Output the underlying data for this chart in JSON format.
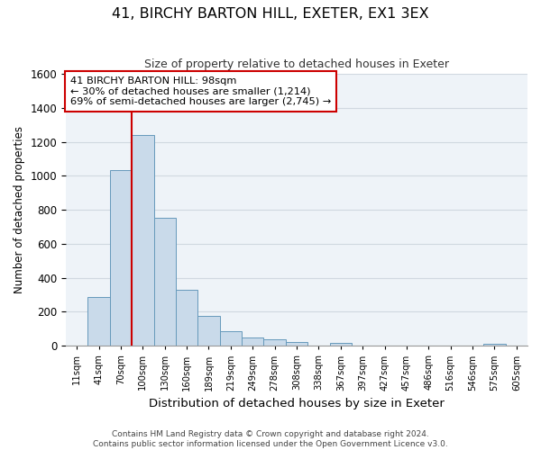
{
  "title": "41, BIRCHY BARTON HILL, EXETER, EX1 3EX",
  "subtitle": "Size of property relative to detached houses in Exeter",
  "xlabel": "Distribution of detached houses by size in Exeter",
  "ylabel": "Number of detached properties",
  "bin_labels": [
    "11sqm",
    "41sqm",
    "70sqm",
    "100sqm",
    "130sqm",
    "160sqm",
    "189sqm",
    "219sqm",
    "249sqm",
    "278sqm",
    "308sqm",
    "338sqm",
    "367sqm",
    "397sqm",
    "427sqm",
    "457sqm",
    "486sqm",
    "516sqm",
    "546sqm",
    "575sqm",
    "605sqm"
  ],
  "bar_heights": [
    0,
    285,
    1035,
    1240,
    755,
    330,
    175,
    85,
    50,
    38,
    20,
    0,
    15,
    0,
    0,
    0,
    0,
    0,
    0,
    10,
    0
  ],
  "bar_color": "#c9daea",
  "bar_edge_color": "#6699bb",
  "vline_index": 3,
  "vline_color": "#cc0000",
  "ylim": [
    0,
    1600
  ],
  "yticks": [
    0,
    200,
    400,
    600,
    800,
    1000,
    1200,
    1400,
    1600
  ],
  "annotation_line1": "41 BIRCHY BARTON HILL: 98sqm",
  "annotation_line2": "← 30% of detached houses are smaller (1,214)",
  "annotation_line3": "69% of semi-detached houses are larger (2,745) →",
  "footer_line1": "Contains HM Land Registry data © Crown copyright and database right 2024.",
  "footer_line2": "Contains public sector information licensed under the Open Government Licence v3.0.",
  "background_color": "#ffffff",
  "grid_color": "#d0d8e0",
  "plot_bg_color": "#eef3f8"
}
